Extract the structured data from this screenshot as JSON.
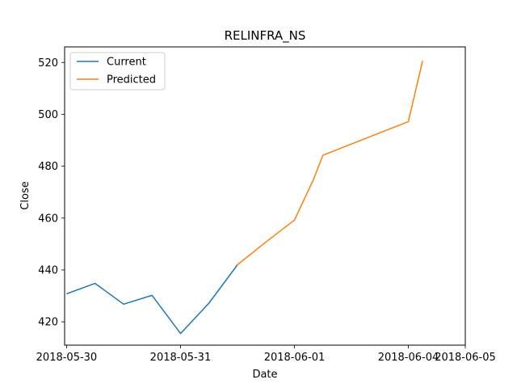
{
  "chart_data": {
    "type": "line",
    "title": "RELINFRA_NS",
    "xlabel": "Date",
    "ylabel": "Close",
    "xlim": [
      "2018-05-29T23:35",
      "2018-06-05T00:00"
    ],
    "ylim": [
      411,
      526
    ],
    "x_ticks": [
      "2018-05-30",
      "2018-05-31",
      "2018-06-01",
      "2018-06-04",
      "2018-06-05"
    ],
    "x_tick_values": [
      "2018-05-30T00:00",
      "2018-05-31T00:00",
      "2018-06-01T00:00",
      "2018-06-04T00:00",
      "2018-06-05T00:00"
    ],
    "x_tick_positions": [
      0,
      1,
      2,
      3,
      3.5
    ],
    "y_ticks": [
      420,
      440,
      460,
      480,
      500,
      520
    ],
    "grid": false,
    "legend_position": "top-left",
    "series": [
      {
        "name": "Current",
        "color": "#1f77b4",
        "x": [
          "2018-05-30T00:00",
          "2018-05-30T06:00",
          "2018-05-30T12:00",
          "2018-05-30T18:00",
          "2018-05-31T00:00",
          "2018-05-31T06:00",
          "2018-05-31T12:00"
        ],
        "values": [
          430.8,
          434.8,
          426.8,
          430.2,
          415.5,
          427.2,
          442.0
        ]
      },
      {
        "name": "Predicted",
        "color": "#ff7f0e",
        "x": [
          "2018-05-31T12:00",
          "2018-05-31T18:00",
          "2018-06-01T00:00",
          "2018-06-01T06:00",
          "2018-06-01T12:00",
          "2018-06-01T18:00",
          "2018-06-04T00:00",
          "2018-06-04T06:00"
        ],
        "values": [
          442.0,
          450.8,
          459.2,
          467.0,
          474.8,
          484.2,
          497.2,
          520.6
        ]
      }
    ]
  }
}
